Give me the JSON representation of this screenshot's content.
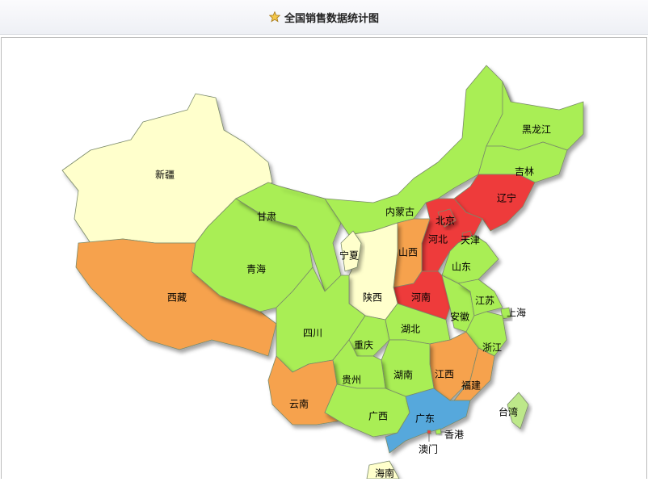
{
  "header": {
    "title": "全国销售数据统计图",
    "icon": "star-icon"
  },
  "colors": {
    "green": "#a9ee55",
    "red": "#ee3a3a",
    "orange": "#f6a24e",
    "yellow": "#ffffcc",
    "blue": "#56a8dc",
    "taiwan": "#bde88a"
  },
  "provinces": [
    {
      "id": "xinjiang",
      "name": "新疆",
      "color": "yellow"
    },
    {
      "id": "xizang",
      "name": "西藏",
      "color": "orange"
    },
    {
      "id": "qinghai",
      "name": "青海",
      "color": "green"
    },
    {
      "id": "gansu",
      "name": "甘肃",
      "color": "green"
    },
    {
      "id": "neimenggu",
      "name": "内蒙古",
      "color": "green"
    },
    {
      "id": "heilongjiang",
      "name": "黑龙江",
      "color": "green"
    },
    {
      "id": "jilin",
      "name": "吉林",
      "color": "green"
    },
    {
      "id": "liaoning",
      "name": "辽宁",
      "color": "red"
    },
    {
      "id": "hebei",
      "name": "河北",
      "color": "red"
    },
    {
      "id": "beijing",
      "name": "北京",
      "color": "red"
    },
    {
      "id": "tianjin",
      "name": "天津",
      "color": "red"
    },
    {
      "id": "shanxi",
      "name": "山西",
      "color": "orange"
    },
    {
      "id": "shandong",
      "name": "山东",
      "color": "green"
    },
    {
      "id": "henan",
      "name": "河南",
      "color": "red"
    },
    {
      "id": "shaanxi",
      "name": "陕西",
      "color": "yellow"
    },
    {
      "id": "ningxia",
      "name": "宁夏",
      "color": "yellow"
    },
    {
      "id": "sichuan",
      "name": "四川",
      "color": "green"
    },
    {
      "id": "chongqing",
      "name": "重庆",
      "color": "green"
    },
    {
      "id": "hubei",
      "name": "湖北",
      "color": "green"
    },
    {
      "id": "anhui",
      "name": "安徽",
      "color": "green"
    },
    {
      "id": "jiangsu",
      "name": "江苏",
      "color": "green"
    },
    {
      "id": "shanghai",
      "name": "上海",
      "color": "green"
    },
    {
      "id": "zhejiang",
      "name": "浙江",
      "color": "green"
    },
    {
      "id": "jiangxi",
      "name": "江西",
      "color": "orange"
    },
    {
      "id": "fujian",
      "name": "福建",
      "color": "orange"
    },
    {
      "id": "hunan",
      "name": "湖南",
      "color": "green"
    },
    {
      "id": "guizhou",
      "name": "贵州",
      "color": "green"
    },
    {
      "id": "yunnan",
      "name": "云南",
      "color": "orange"
    },
    {
      "id": "guangxi",
      "name": "广西",
      "color": "green"
    },
    {
      "id": "guangdong",
      "name": "广东",
      "color": "blue"
    },
    {
      "id": "hainan",
      "name": "海南",
      "color": "yellow"
    },
    {
      "id": "taiwan",
      "name": "台湾",
      "color": "taiwan"
    },
    {
      "id": "xianggang",
      "name": "香港",
      "color": "green"
    },
    {
      "id": "aomen",
      "name": "澳门",
      "color": "red"
    }
  ]
}
